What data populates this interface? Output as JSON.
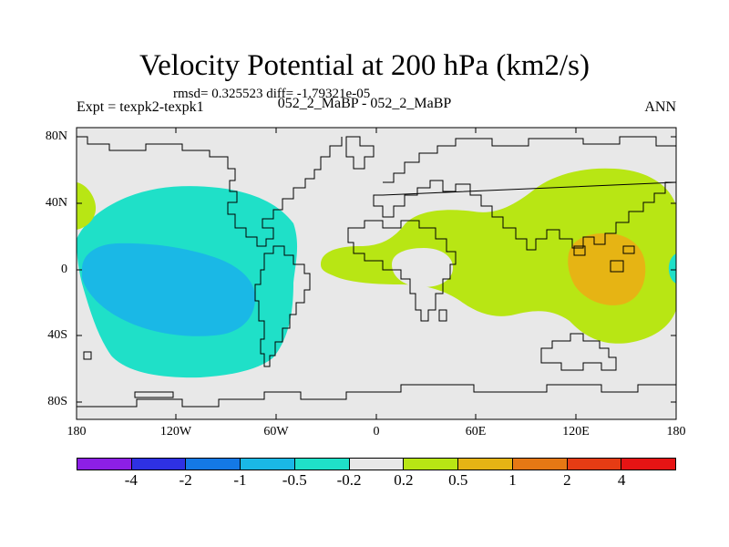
{
  "title": "Velocity Potential at 200 hPa (km2/s)",
  "stats": "rmsd= 0.325523 diff= -1.79321e-05",
  "left_label": "Expt = texpk2-texpk1",
  "center_label": "052_2_MaBP - 052_2_MaBP",
  "right_label": "ANN",
  "lat_labels": [
    "80N",
    "40N",
    "0",
    "40S",
    "80S"
  ],
  "lon_labels": [
    "180",
    "120W",
    "60W",
    "0",
    "60E",
    "120E",
    "180"
  ],
  "colorbar": {
    "colors": [
      "#8c1fe6",
      "#2e31e3",
      "#1479e6",
      "#1ab8e6",
      "#1fe0c8",
      "#e8e8e8",
      "#b8e614",
      "#e6b414",
      "#e67814",
      "#e63c14",
      "#e61414"
    ],
    "labels": [
      "-4",
      "-2",
      "-1",
      "-0.5",
      "-0.2",
      "0.2",
      "0.5",
      "1",
      "2",
      "4"
    ]
  },
  "colors": {
    "neutral": "#e8e8e8",
    "neg_weak": "#1fe0c8",
    "neg_mid": "#1ab8e6",
    "pos_weak": "#b8e614",
    "pos_mid": "#e6b414"
  }
}
